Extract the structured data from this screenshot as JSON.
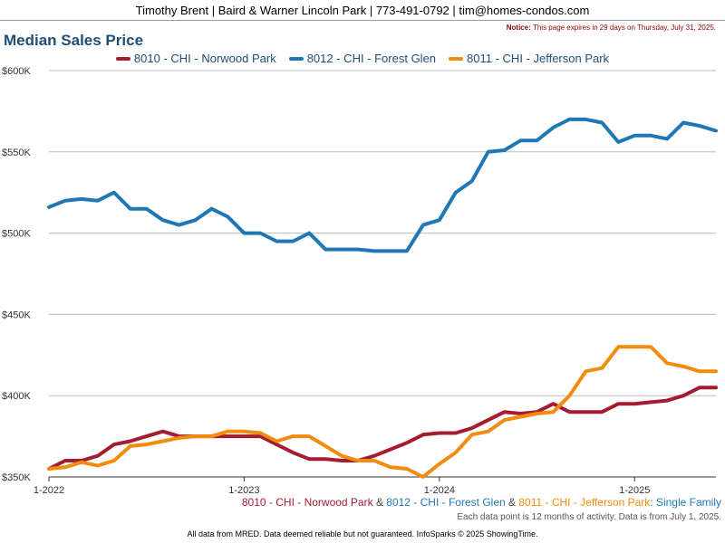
{
  "header": {
    "text": "Timothy Brent | Baird & Warner Lincoln Park | 773-491-0792 | tim@homes-condos.com"
  },
  "notice": {
    "label": "Notice:",
    "text": "This page expires in 29 days on Thursday, July 31, 2025."
  },
  "subtitle": {
    "parts": [
      {
        "text": "8010 - CHI - Norwood Park",
        "color": "#a51c30"
      },
      {
        "text": " & ",
        "color": "#444444"
      },
      {
        "text": "8012 - CHI - Forest Glen",
        "color": "#1f78b4"
      },
      {
        "text": " & ",
        "color": "#444444"
      },
      {
        "text": "8011 - CHI - Jefferson Park",
        "color": "#f28c0f"
      },
      {
        "text": ": Single Family",
        "color": "#1f78b4"
      }
    ]
  },
  "footnote": "Each data point is 12 months of activity. Data is from July 1, 2025.",
  "footer": "All data from MRED. Data deemed reliable but not guaranteed. InfoSparks © 2025 ShowingTime.",
  "chart_data": {
    "type": "line",
    "title": "Median Sales Price",
    "ylim": [
      350000,
      600000
    ],
    "y_ticks": [
      350000,
      400000,
      450000,
      500000,
      550000,
      600000
    ],
    "y_tick_labels": [
      "$350K",
      "$400K",
      "$450K",
      "$500K",
      "$550K",
      "$600K"
    ],
    "x_ticks": [
      "2022-01",
      "2023-01",
      "2024-01",
      "2025-01"
    ],
    "x_tick_labels": [
      "1-2022",
      "1-2023",
      "1-2024",
      "1-2025"
    ],
    "x": [
      "2022-01",
      "2022-02",
      "2022-03",
      "2022-04",
      "2022-05",
      "2022-06",
      "2022-07",
      "2022-08",
      "2022-09",
      "2022-10",
      "2022-11",
      "2022-12",
      "2023-01",
      "2023-02",
      "2023-03",
      "2023-04",
      "2023-05",
      "2023-06",
      "2023-07",
      "2023-08",
      "2023-09",
      "2023-10",
      "2023-11",
      "2023-12",
      "2024-01",
      "2024-02",
      "2024-03",
      "2024-04",
      "2024-05",
      "2024-06",
      "2024-07",
      "2024-08",
      "2024-09",
      "2024-10",
      "2024-11",
      "2024-12",
      "2025-01",
      "2025-02",
      "2025-03",
      "2025-04",
      "2025-05",
      "2025-06"
    ],
    "grid": true,
    "legend_position": "top",
    "series": [
      {
        "name": "8010 - CHI - Norwood Park",
        "color": "#a51c30",
        "values": [
          355000,
          360000,
          360000,
          363000,
          370000,
          372000,
          375000,
          378000,
          375000,
          375000,
          375000,
          375000,
          375000,
          375000,
          370000,
          365000,
          361000,
          361000,
          360000,
          360000,
          363000,
          367000,
          371000,
          376000,
          377000,
          377000,
          380000,
          385000,
          390000,
          389000,
          390000,
          395000,
          390000,
          390000,
          390000,
          395000,
          395000,
          396000,
          397000,
          400000,
          405000,
          405000
        ]
      },
      {
        "name": "8012 - CHI - Forest Glen",
        "color": "#1f78b4",
        "values": [
          516000,
          520000,
          521000,
          520000,
          525000,
          515000,
          515000,
          508000,
          505000,
          508000,
          515000,
          510000,
          500000,
          500000,
          495000,
          495000,
          500000,
          490000,
          490000,
          490000,
          489000,
          489000,
          489000,
          505000,
          508000,
          525000,
          532000,
          550000,
          551000,
          557000,
          557000,
          565000,
          570000,
          570000,
          568000,
          556000,
          560000,
          560000,
          558000,
          568000,
          566000,
          563000
        ]
      },
      {
        "name": "8011 - CHI - Jefferson Park",
        "color": "#f28c0f",
        "values": [
          355000,
          356000,
          359000,
          357000,
          360000,
          369000,
          370000,
          372000,
          374000,
          375000,
          375000,
          378000,
          378000,
          377000,
          372000,
          375000,
          375000,
          369000,
          363000,
          360000,
          360000,
          356000,
          355000,
          350000,
          358000,
          365000,
          376000,
          378000,
          385000,
          387000,
          389000,
          390000,
          400000,
          415000,
          417000,
          430000,
          430000,
          430000,
          420000,
          418000,
          415000,
          415000
        ]
      }
    ]
  }
}
